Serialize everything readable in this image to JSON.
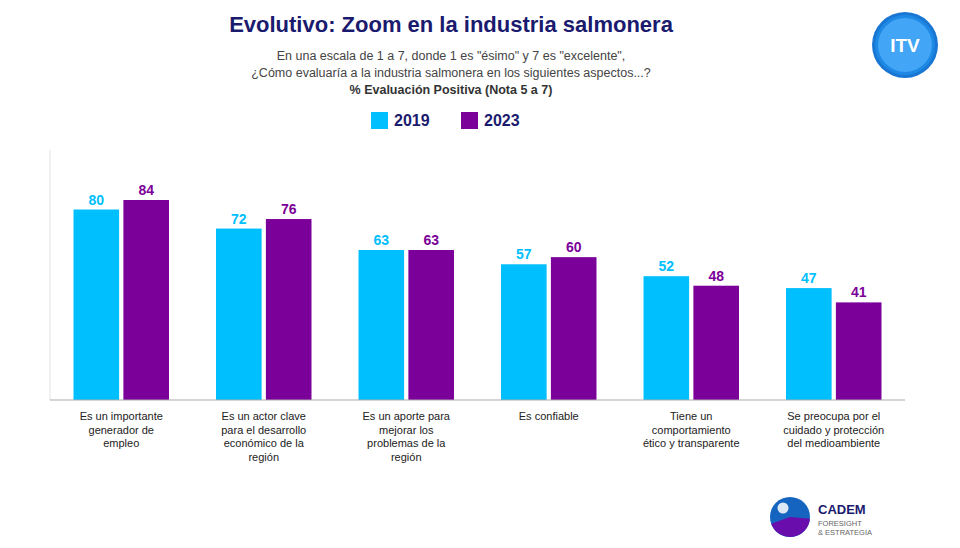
{
  "chart_data": {
    "type": "bar",
    "title": "Evolutivo: Zoom en la industria salmonera",
    "subtitle": [
      "En una escala de 1 a 7, donde 1 es \"ésimo\" y 7 es \"excelente\",",
      "¿Cómo evaluaría a la industria salmonera en los siguientes aspectos...?",
      "% Evaluación Positiva (Nota 5 a 7)"
    ],
    "annotations": [
      "ITV",
      "CADEM",
      "FORESIGHT\n& ESTRATEGIA"
    ],
    "categories": [
      "Es un importante\ngenerador de\nempleo",
      "Es un actor clave\npara el desarrollo\neconómico de la\nregión",
      "Es un aporte para\nmejorar los\nproblemas de la\nregión",
      "Es confiable",
      "Tiene un\ncomportamiento\nético y transparente",
      "Se preocupa por el\ncuidado y protección\ndel medioambiente"
    ],
    "series": [
      {
        "name": "2019",
        "color": "#00BFFF",
        "values": [
          80,
          72,
          63,
          57,
          52,
          47
        ]
      },
      {
        "name": "2023",
        "color": "#7B0099",
        "values": [
          84,
          76,
          63,
          60,
          48,
          41
        ]
      }
    ],
    "ylim": [
      0,
      105
    ],
    "grid": false,
    "legend": "top",
    "data_labels": true,
    "tick_labels": "x"
  }
}
